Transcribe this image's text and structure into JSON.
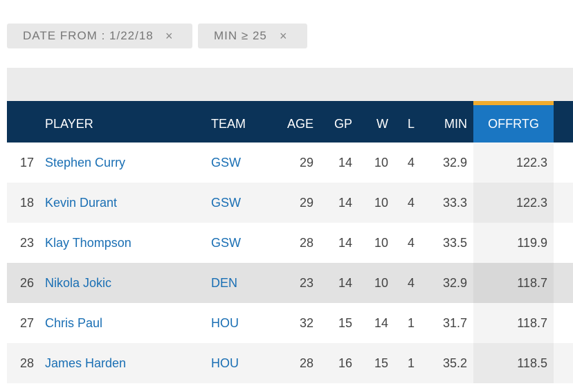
{
  "filters": [
    {
      "label": "DATE FROM : 1/22/18",
      "remove_icon": "×"
    },
    {
      "label": "MIN ≥ 25",
      "remove_icon": "×"
    }
  ],
  "table": {
    "headers": {
      "rank": "",
      "player": "PLAYER",
      "team": "TEAM",
      "age": "AGE",
      "gp": "GP",
      "w": "W",
      "l": "L",
      "min": "MIN",
      "offrtg": "OFFRTG"
    },
    "rows": [
      {
        "rank": "17",
        "player": "Stephen Curry",
        "team": "GSW",
        "age": "29",
        "gp": "14",
        "w": "10",
        "l": "4",
        "min": "32.9",
        "offrtg": "122.3"
      },
      {
        "rank": "18",
        "player": "Kevin Durant",
        "team": "GSW",
        "age": "29",
        "gp": "14",
        "w": "10",
        "l": "4",
        "min": "33.3",
        "offrtg": "122.3"
      },
      {
        "rank": "23",
        "player": "Klay Thompson",
        "team": "GSW",
        "age": "28",
        "gp": "14",
        "w": "10",
        "l": "4",
        "min": "33.5",
        "offrtg": "119.9"
      },
      {
        "rank": "26",
        "player": "Nikola Jokic",
        "team": "DEN",
        "age": "23",
        "gp": "14",
        "w": "10",
        "l": "4",
        "min": "32.9",
        "offrtg": "118.7"
      },
      {
        "rank": "27",
        "player": "Chris Paul",
        "team": "HOU",
        "age": "32",
        "gp": "15",
        "w": "14",
        "l": "1",
        "min": "31.7",
        "offrtg": "118.7"
      },
      {
        "rank": "28",
        "player": "James Harden",
        "team": "HOU",
        "age": "28",
        "gp": "16",
        "w": "15",
        "l": "1",
        "min": "35.2",
        "offrtg": "118.5"
      }
    ]
  },
  "colors": {
    "header_bg": "#0b3358",
    "sorted_col": "#1a76c2",
    "sort_indicator": "#f0ab2e",
    "link": "#1a6fb4"
  }
}
